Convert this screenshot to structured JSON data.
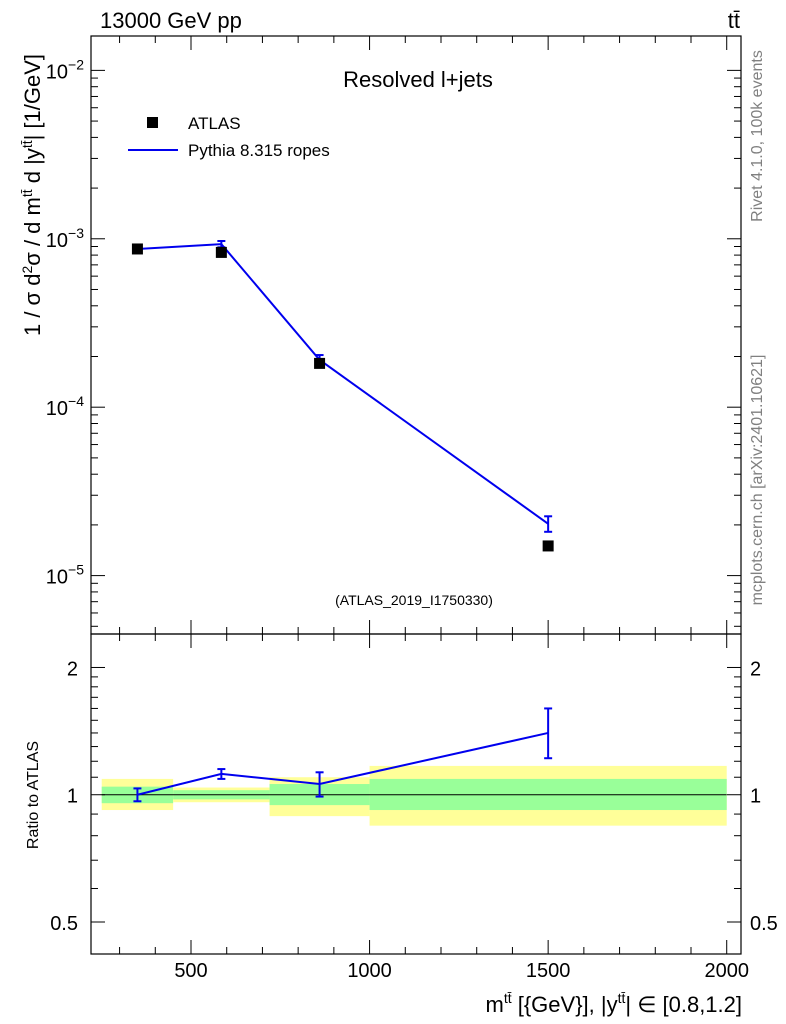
{
  "header": {
    "energy_label": "13000 GeV pp",
    "process_label": "tt̄"
  },
  "side_labels": {
    "rivet": "Rivet 4.1.0,  100k events",
    "mcplots": "mcplots.cern.ch [arXiv:2401.10621]"
  },
  "colors": {
    "data_marker": "#000000",
    "mc_line": "#0000ee",
    "band_inner": "#99ff99",
    "band_outer": "#ffff99",
    "ref_line": "#000000"
  },
  "chart_data": [
    {
      "type": "line",
      "panel": "main",
      "title": "Resolved l+jets",
      "watermark": "(ATLAS_2019_I1750330)",
      "ylabel": "1 / σ d²σ / d m^tt̄ d |y^tt̄| [1/GeV]",
      "yscale": "log",
      "ylim": [
        4.5e-06,
        0.016
      ],
      "xlim": [
        220,
        2040
      ],
      "yticks": [
        {
          "value": 0.01,
          "base": "10",
          "exp": "−2"
        },
        {
          "value": 0.001,
          "base": "10",
          "exp": "−3"
        },
        {
          "value": 0.0001,
          "base": "10",
          "exp": "−4"
        },
        {
          "value": 1e-05,
          "base": "10",
          "exp": "−5"
        }
      ],
      "legend": [
        {
          "label": "ATLAS",
          "kind": "marker"
        },
        {
          "label": "Pythia 8.315 ropes",
          "kind": "line"
        }
      ],
      "series": [
        {
          "name": "ATLAS",
          "x": [
            350,
            585,
            860,
            1500
          ],
          "values": [
            0.00087,
            0.00083,
            0.000182,
            1.5e-05
          ]
        },
        {
          "name": "Pythia 8.315 ropes",
          "x": [
            350,
            585,
            860,
            1500
          ],
          "values": [
            0.00087,
            0.00093,
            0.000191,
            2.03e-05
          ],
          "err_low": [
            0.00084,
            0.00089,
            0.000178,
            1.82e-05
          ],
          "err_high": [
            0.0009,
            0.00097,
            0.000204,
            2.25e-05
          ]
        }
      ]
    },
    {
      "type": "line",
      "panel": "ratio",
      "ylabel": "Ratio to ATLAS",
      "xlabel_main": "m",
      "xlabel_sup": "tt̄",
      "xlabel_rest": " [{GeV}], |y",
      "xlabel_sup2": "tt̄",
      "xlabel_tail": "| ∈ [0.8,1.2]",
      "yscale": "log",
      "ylim": [
        0.42,
        2.4
      ],
      "xlim": [
        220,
        2040
      ],
      "yticks": [
        {
          "value": 2,
          "label": "2"
        },
        {
          "value": 1,
          "label": "1"
        },
        {
          "value": 0.5,
          "label": "0.5"
        }
      ],
      "xticks": [
        {
          "value": 500,
          "label": "500"
        },
        {
          "value": 1000,
          "label": "1000"
        },
        {
          "value": 1500,
          "label": "1500"
        },
        {
          "value": 2000,
          "label": "2000"
        }
      ],
      "bands": [
        {
          "x_low": 250,
          "x_high": 450,
          "inner": [
            0.955,
            1.045
          ],
          "outer": [
            0.92,
            1.09
          ]
        },
        {
          "x_low": 450,
          "x_high": 720,
          "inner": [
            0.975,
            1.025
          ],
          "outer": [
            0.96,
            1.04
          ]
        },
        {
          "x_low": 720,
          "x_high": 1000,
          "inner": [
            0.945,
            1.06
          ],
          "outer": [
            0.89,
            1.1
          ]
        },
        {
          "x_low": 1000,
          "x_high": 2000,
          "inner": [
            0.92,
            1.09
          ],
          "outer": [
            0.845,
            1.17
          ]
        }
      ],
      "series": [
        {
          "name": "Pythia 8.315 ropes",
          "x": [
            350,
            585,
            860,
            1500
          ],
          "values": [
            1.0,
            1.12,
            1.06,
            1.4
          ],
          "err_low": [
            0.965,
            1.09,
            0.99,
            1.22
          ],
          "err_high": [
            1.035,
            1.15,
            1.13,
            1.6
          ]
        }
      ]
    }
  ]
}
